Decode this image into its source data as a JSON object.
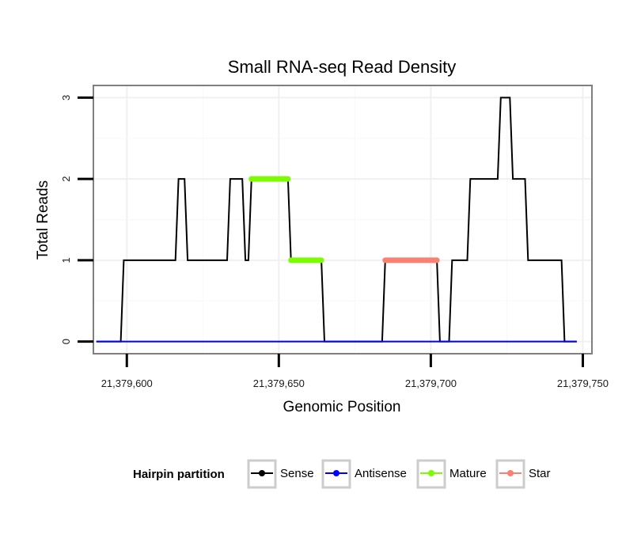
{
  "chart_data": {
    "type": "line",
    "title": "Small RNA-seq Read Density",
    "xlabel": "Genomic Position",
    "ylabel": "Total Reads",
    "xlim": [
      21379589,
      21379753
    ],
    "ylim": [
      -0.15,
      3.15
    ],
    "x_ticks": [
      21379600,
      21379650,
      21379700,
      21379750
    ],
    "x_tick_labels": [
      "21,379,600",
      "21,379,650",
      "21,379,700",
      "21,379,750"
    ],
    "y_ticks": [
      0,
      1,
      2,
      3
    ],
    "y_tick_labels": [
      "0",
      "1",
      "2",
      "3"
    ],
    "grid": true,
    "legend": {
      "title": "Hairpin partition",
      "position": "bottom",
      "entries": [
        {
          "name": "Sense",
          "color": "#000000"
        },
        {
          "name": "Antisense",
          "color": "#0000ff"
        },
        {
          "name": "Mature",
          "color": "#7cfc00"
        },
        {
          "name": "Star",
          "color": "#fa8072"
        }
      ]
    },
    "series": [
      {
        "name": "Sense",
        "color": "#000000",
        "points": [
          [
            21379590,
            0
          ],
          [
            21379598,
            0
          ],
          [
            21379599,
            1
          ],
          [
            21379616,
            1
          ],
          [
            21379617,
            2
          ],
          [
            21379619,
            2
          ],
          [
            21379620,
            1
          ],
          [
            21379633,
            1
          ],
          [
            21379634,
            2
          ],
          [
            21379638,
            2
          ],
          [
            21379639,
            1
          ],
          [
            21379640,
            1
          ],
          [
            21379641,
            2
          ],
          [
            21379653,
            2
          ],
          [
            21379654,
            1
          ],
          [
            21379664,
            1
          ],
          [
            21379665,
            0
          ],
          [
            21379684,
            0
          ],
          [
            21379685,
            1
          ],
          [
            21379702,
            1
          ],
          [
            21379703,
            0
          ],
          [
            21379706,
            0
          ],
          [
            21379707,
            1
          ],
          [
            21379712,
            1
          ],
          [
            21379713,
            2
          ],
          [
            21379722,
            2
          ],
          [
            21379723,
            3
          ],
          [
            21379726,
            3
          ],
          [
            21379727,
            2
          ],
          [
            21379731,
            2
          ],
          [
            21379732,
            1
          ],
          [
            21379743,
            1
          ],
          [
            21379744,
            0
          ],
          [
            21379748,
            0
          ]
        ]
      },
      {
        "name": "Antisense",
        "color": "#0000ff",
        "points": [
          [
            21379590,
            0
          ],
          [
            21379748,
            0
          ]
        ]
      },
      {
        "name": "Mature",
        "color": "#7cfc00",
        "segments": [
          {
            "x_start": 21379641,
            "x_end": 21379653,
            "y": 2
          },
          {
            "x_start": 21379654,
            "x_end": 21379664,
            "y": 1
          }
        ]
      },
      {
        "name": "Star",
        "color": "#fa8072",
        "segments": [
          {
            "x_start": 21379685,
            "x_end": 21379702,
            "y": 1
          }
        ]
      }
    ]
  }
}
